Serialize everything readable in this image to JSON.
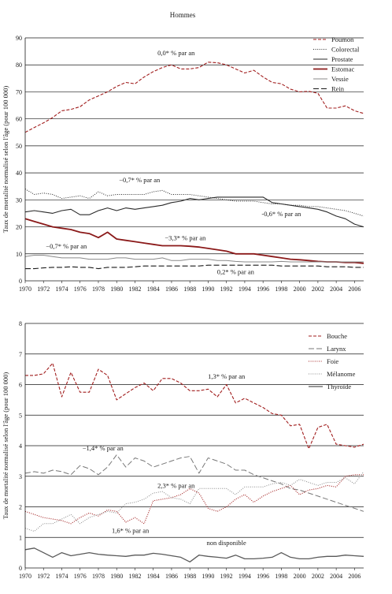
{
  "page_title": "Hommes",
  "chart_data": [
    {
      "type": "line",
      "ylabel": "Taux de mortalité normalisé selon l'âge (pour 100 000)",
      "xlabel": "",
      "ylim": [
        0,
        90
      ],
      "yticks": [
        0,
        10,
        20,
        30,
        40,
        50,
        60,
        70,
        80,
        90
      ],
      "xticks": [
        1970,
        1972,
        1974,
        1976,
        1978,
        1980,
        1982,
        1984,
        1986,
        1988,
        1990,
        1992,
        1994,
        1996,
        1998,
        2000,
        2002,
        2004,
        2006
      ],
      "x": [
        1970,
        1971,
        1972,
        1973,
        1974,
        1975,
        1976,
        1977,
        1978,
        1979,
        1980,
        1981,
        1982,
        1983,
        1984,
        1985,
        1986,
        1987,
        1988,
        1989,
        1990,
        1991,
        1992,
        1993,
        1994,
        1995,
        1996,
        1997,
        1998,
        1999,
        2000,
        2001,
        2002,
        2003,
        2004,
        2005,
        2006,
        2007
      ],
      "grid": "horizontal",
      "legend_position": "top-right",
      "series": [
        {
          "name": "Poumon",
          "color": "#a11d1d",
          "style": "dashed",
          "width": 1.1,
          "values": [
            55.0,
            56.8,
            58.5,
            60.5,
            63.0,
            63.5,
            64.5,
            67.0,
            68.5,
            70.0,
            72.0,
            73.5,
            73.0,
            75.5,
            77.5,
            79.0,
            80.0,
            78.5,
            78.5,
            79.0,
            81.0,
            80.8,
            80.0,
            78.5,
            77.0,
            78.0,
            75.5,
            73.5,
            73.0,
            71.0,
            70.0,
            70.2,
            69.5,
            64.0,
            64.0,
            64.8,
            63.0,
            62.0
          ]
        },
        {
          "name": "Colorectal",
          "color": "#2a2a2a",
          "style": "dotted",
          "width": 1.0,
          "values": [
            34.0,
            32.0,
            32.5,
            32.0,
            30.5,
            31.0,
            31.5,
            30.5,
            33.0,
            31.5,
            32.0,
            32.0,
            32.0,
            32.0,
            33.0,
            33.5,
            32.0,
            32.0,
            32.0,
            31.5,
            31.0,
            30.5,
            30.0,
            29.5,
            29.5,
            29.5,
            29.0,
            28.5,
            28.5,
            28.0,
            28.0,
            27.5,
            27.5,
            27.0,
            26.5,
            26.0,
            25.0,
            24.0
          ]
        },
        {
          "name": "Prostate",
          "color": "#2a2a2a",
          "style": "solid",
          "width": 1.1,
          "values": [
            25.5,
            26.0,
            25.5,
            25.0,
            26.0,
            26.5,
            24.5,
            24.5,
            26.0,
            27.0,
            26.0,
            27.0,
            26.5,
            27.0,
            27.5,
            28.0,
            29.0,
            29.5,
            30.5,
            30.0,
            30.5,
            31.0,
            31.0,
            31.0,
            31.0,
            31.0,
            31.0,
            29.0,
            28.5,
            28.0,
            27.5,
            27.0,
            26.5,
            25.5,
            24.0,
            23.0,
            21.0,
            20.0
          ]
        },
        {
          "name": "Estomac",
          "color": "#8b1a1a",
          "style": "solid",
          "width": 1.8,
          "values": [
            23.0,
            22.0,
            21.0,
            20.0,
            19.5,
            19.0,
            18.0,
            17.5,
            16.0,
            18.0,
            15.5,
            15.0,
            14.5,
            14.0,
            13.5,
            13.0,
            13.0,
            13.0,
            12.8,
            12.5,
            12.0,
            11.5,
            11.0,
            10.0,
            10.0,
            10.0,
            9.5,
            9.0,
            8.5,
            8.0,
            7.8,
            7.5,
            7.2,
            7.0,
            7.0,
            6.8,
            6.8,
            6.5
          ]
        },
        {
          "name": "Vessie",
          "color": "#8a8a8a",
          "style": "solid",
          "width": 1.0,
          "values": [
            9.0,
            9.5,
            9.5,
            9.0,
            8.5,
            8.5,
            8.5,
            8.0,
            8.0,
            8.0,
            8.5,
            8.5,
            8.0,
            8.0,
            8.0,
            8.5,
            7.5,
            7.5,
            8.0,
            8.0,
            8.0,
            7.5,
            7.5,
            7.2,
            7.0,
            7.0,
            7.0,
            7.0,
            7.2,
            7.0,
            7.0,
            7.0,
            7.0,
            7.0,
            7.0,
            7.0,
            7.0,
            7.0
          ]
        },
        {
          "name": "Rein",
          "color": "#1a1a1a",
          "style": "longdash",
          "width": 1.1,
          "values": [
            4.5,
            4.5,
            4.8,
            5.0,
            5.0,
            5.2,
            5.0,
            5.0,
            4.5,
            5.0,
            5.0,
            5.0,
            5.2,
            5.5,
            5.5,
            5.5,
            5.5,
            5.5,
            5.5,
            5.5,
            5.8,
            5.8,
            5.8,
            5.8,
            5.8,
            5.8,
            5.8,
            5.8,
            5.5,
            5.5,
            5.5,
            5.5,
            5.5,
            5.2,
            5.2,
            5.2,
            5.0,
            5.0
          ]
        }
      ],
      "annotations": [
        {
          "text": "0,0* % par an",
          "x": 1986.5,
          "y": 83.5,
          "anchor": "middle"
        },
        {
          "text": "−0,7* % par an",
          "x": 1982.5,
          "y": 36.5,
          "anchor": "middle"
        },
        {
          "text": "-0,6* % par an",
          "x": 1998,
          "y": 24.0,
          "anchor": "middle"
        },
        {
          "text": "−3,3* % par an",
          "x": 1987.5,
          "y": 15.0,
          "anchor": "middle"
        },
        {
          "text": "−0,7* % par an",
          "x": 1974.5,
          "y": 12.0,
          "anchor": "middle"
        },
        {
          "text": "0,2* % par an",
          "x": 1993,
          "y": 2.5,
          "anchor": "middle"
        }
      ]
    },
    {
      "type": "line",
      "ylabel": "Taux de mortalité normalisé selon l'âge (pour 100 000)",
      "xlabel": "",
      "ylim": [
        0,
        8
      ],
      "yticks": [
        0,
        1,
        2,
        3,
        4,
        5,
        6,
        7,
        8
      ],
      "xticks": [
        1970,
        1972,
        1974,
        1976,
        1978,
        1980,
        1982,
        1984,
        1986,
        1988,
        1990,
        1992,
        1994,
        1996,
        1998,
        2000,
        2002,
        2004,
        2006
      ],
      "x": [
        1970,
        1971,
        1972,
        1973,
        1974,
        1975,
        1976,
        1977,
        1978,
        1979,
        1980,
        1981,
        1982,
        1983,
        1984,
        1985,
        1986,
        1987,
        1988,
        1989,
        1990,
        1991,
        1992,
        1993,
        1994,
        1995,
        1996,
        1997,
        1998,
        1999,
        2000,
        2001,
        2002,
        2003,
        2004,
        2005,
        2006,
        2007
      ],
      "grid": "horizontal",
      "legend_position": "top-right",
      "series": [
        {
          "name": "Bouche",
          "color": "#a11d1d",
          "style": "dashed",
          "width": 1.1,
          "values": [
            6.3,
            6.3,
            6.35,
            6.7,
            5.6,
            6.4,
            5.75,
            5.75,
            6.5,
            6.3,
            5.5,
            5.7,
            5.9,
            6.05,
            5.8,
            6.2,
            6.2,
            6.05,
            5.8,
            5.8,
            5.85,
            5.6,
            6.0,
            5.4,
            5.55,
            5.4,
            5.25,
            5.05,
            5.0,
            4.65,
            4.7,
            3.9,
            4.6,
            4.7,
            4.05,
            4.0,
            3.95,
            4.05
          ]
        },
        {
          "name": "Larynx",
          "color": "#777777",
          "style": "longdash",
          "width": 1.0,
          "values": [
            3.1,
            3.15,
            3.1,
            3.2,
            3.15,
            3.05,
            3.35,
            3.25,
            3.05,
            3.3,
            3.7,
            3.3,
            3.6,
            3.5,
            3.3,
            3.4,
            3.5,
            3.6,
            3.65,
            3.1,
            3.6,
            3.5,
            3.4,
            3.2,
            3.2,
            3.05,
            2.95,
            2.85,
            2.75,
            2.6,
            2.55,
            2.45,
            2.35,
            2.25,
            2.15,
            2.05,
            1.95,
            1.85
          ]
        },
        {
          "name": "Foie",
          "color": "#a11d1d",
          "style": "dotted",
          "width": 1.1,
          "values": [
            1.85,
            1.75,
            1.65,
            1.6,
            1.55,
            1.45,
            1.65,
            1.8,
            1.7,
            1.9,
            1.85,
            1.5,
            1.65,
            1.45,
            2.2,
            2.25,
            2.3,
            2.4,
            2.6,
            2.45,
            1.95,
            1.85,
            2.0,
            2.25,
            2.4,
            2.15,
            2.35,
            2.5,
            2.6,
            2.7,
            2.4,
            2.55,
            2.6,
            2.7,
            2.65,
            3.0,
            3.05,
            3.05
          ]
        },
        {
          "name": "Mélanome",
          "color": "#8a8a8a",
          "style": "dotted",
          "width": 1.0,
          "values": [
            1.3,
            1.2,
            1.45,
            1.45,
            1.6,
            1.75,
            1.45,
            1.65,
            1.75,
            1.85,
            1.8,
            2.1,
            2.15,
            2.25,
            2.45,
            2.5,
            2.3,
            2.25,
            2.1,
            2.6,
            2.6,
            2.6,
            2.6,
            2.4,
            2.65,
            2.65,
            2.65,
            2.75,
            2.8,
            2.7,
            2.9,
            2.8,
            2.7,
            2.8,
            2.8,
            2.95,
            2.75,
            3.15
          ]
        },
        {
          "name": "Thyroïde",
          "color": "#5a5a5a",
          "style": "solid",
          "width": 1.3,
          "values": [
            0.6,
            0.65,
            0.5,
            0.35,
            0.5,
            0.4,
            0.45,
            0.5,
            0.45,
            0.42,
            0.4,
            0.38,
            0.42,
            0.42,
            0.48,
            0.45,
            0.4,
            0.35,
            0.2,
            0.42,
            0.38,
            0.35,
            0.32,
            0.42,
            0.3,
            0.3,
            0.32,
            0.35,
            0.5,
            0.35,
            0.3,
            0.3,
            0.35,
            0.38,
            0.38,
            0.42,
            0.4,
            0.38
          ]
        }
      ],
      "annotations": [
        {
          "text": "1,3* % par an",
          "x": 1992,
          "y": 6.2,
          "anchor": "middle"
        },
        {
          "text": "−1,4* % par an",
          "x": 1978.5,
          "y": 3.85,
          "anchor": "middle"
        },
        {
          "text": "2,3* % par an",
          "x": 1986.5,
          "y": 2.62,
          "anchor": "middle"
        },
        {
          "text": "1,6* % par an",
          "x": 1981.5,
          "y": 1.15,
          "anchor": "middle"
        },
        {
          "text": "non disponible",
          "x": 1992,
          "y": 0.75,
          "anchor": "middle"
        }
      ]
    }
  ]
}
